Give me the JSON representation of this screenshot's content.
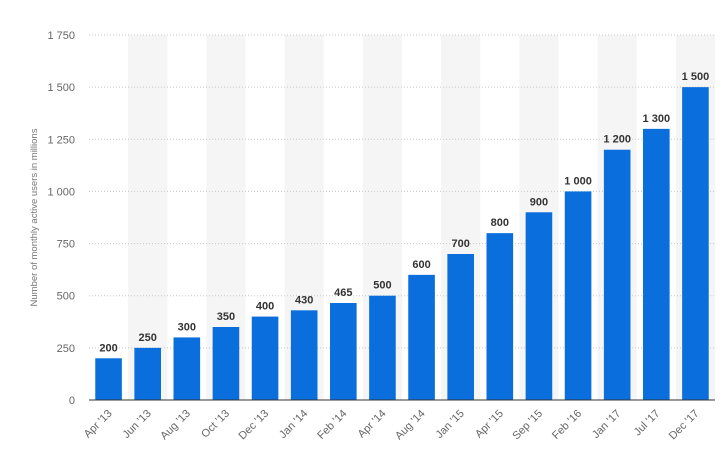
{
  "chart_data": {
    "type": "bar",
    "title": "",
    "xlabel": "",
    "ylabel": "Number of monthly active users in millions",
    "categories": [
      "Apr '13",
      "Jun '13",
      "Aug '13",
      "Oct '13",
      "Dec '13",
      "Jan '14",
      "Feb '14",
      "Apr '14",
      "Aug '14",
      "Jan '15",
      "Apr '15",
      "Sep '15",
      "Feb '16",
      "Jan '17",
      "Jul '17",
      "Dec '17"
    ],
    "values": [
      200,
      250,
      300,
      350,
      400,
      430,
      465,
      500,
      600,
      700,
      800,
      900,
      1000,
      1200,
      1300,
      1500
    ],
    "value_labels": [
      "200",
      "250",
      "300",
      "350",
      "400",
      "430",
      "465",
      "500",
      "600",
      "700",
      "800",
      "900",
      "1 000",
      "1 200",
      "1 300",
      "1 500"
    ],
    "ylim": [
      0,
      1750
    ],
    "yticks": [
      0,
      250,
      500,
      750,
      1000,
      1250,
      1500,
      1750
    ],
    "ytick_labels": [
      "0",
      "250",
      "500",
      "750",
      "1 000",
      "1 250",
      "1 500",
      "1 750"
    ],
    "grid": true,
    "legend": "none",
    "colors": {
      "bar": "#0a6fdc",
      "band": "#f5f5f5",
      "grid": "#c8c8c8",
      "axis": "#333333"
    }
  }
}
